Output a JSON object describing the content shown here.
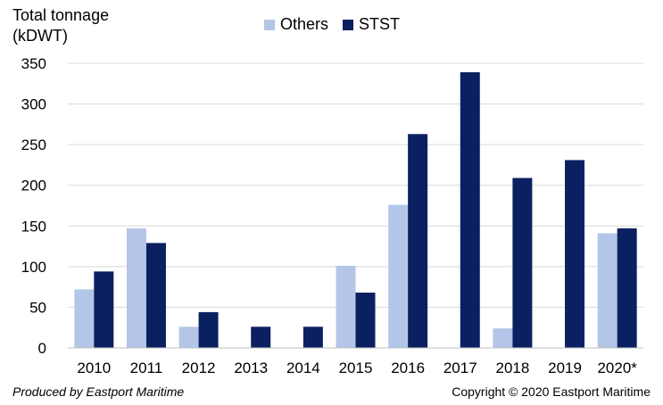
{
  "chart_data": {
    "type": "bar",
    "ylabel": "Total tonnage\n(kDWT)",
    "xlabel": "",
    "categories": [
      "2010",
      "2011",
      "2012",
      "2013",
      "2014",
      "2015",
      "2016",
      "2017",
      "2018",
      "2019",
      "2020*"
    ],
    "series": [
      {
        "name": "Others",
        "color": "#b4c6e7",
        "values": [
          72,
          147,
          26,
          0,
          0,
          101,
          176,
          0,
          24,
          0,
          141
        ]
      },
      {
        "name": "STST",
        "color": "#0b2060",
        "values": [
          94,
          129,
          44,
          26,
          26,
          68,
          263,
          339,
          209,
          231,
          147
        ]
      }
    ],
    "ylim": [
      0,
      350
    ],
    "yticks": [
      0,
      50,
      100,
      150,
      200,
      250,
      300,
      350
    ],
    "grid": true,
    "legend_position": "top"
  },
  "footer": {
    "left": "Produced by Eastport Maritime",
    "right": "Copyright © 2020 Eastport Maritime"
  }
}
